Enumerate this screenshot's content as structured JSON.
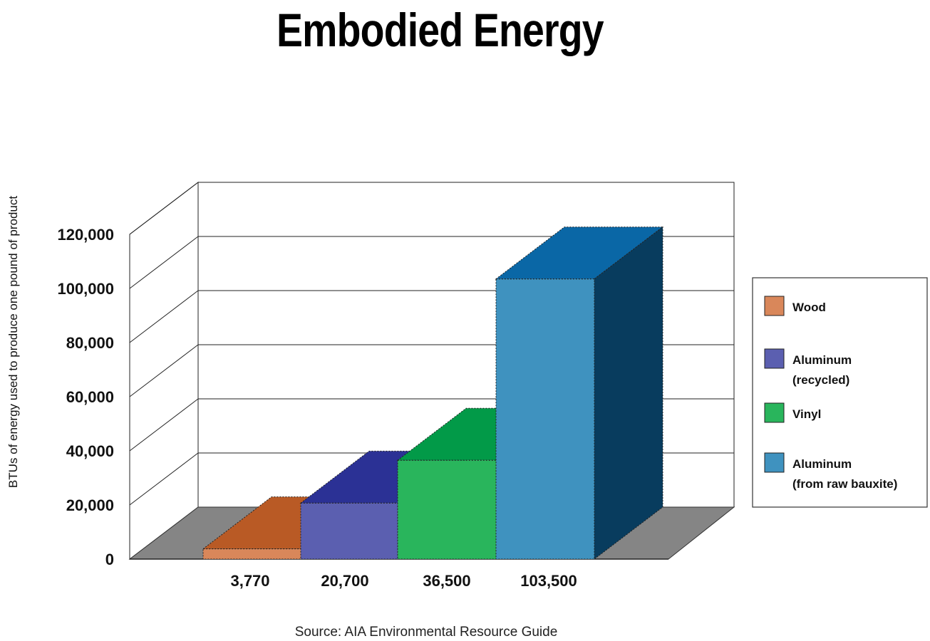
{
  "chart_data": {
    "type": "bar",
    "title": "Embodied Energy",
    "ylabel": "BTUs of energy used to produce one pound of product",
    "xlabel": "",
    "ylim": [
      0,
      120000
    ],
    "yticks": [
      0,
      20000,
      40000,
      60000,
      80000,
      100000,
      120000
    ],
    "ytick_labels": [
      "0",
      "20,000",
      "40,000",
      "60,000",
      "80,000",
      "100,000",
      "120,000"
    ],
    "categories": [
      "Wood",
      "Aluminum (recycled)",
      "Vinyl",
      "Aluminum (from raw bauxite)"
    ],
    "values": [
      3770,
      20700,
      36500,
      103500
    ],
    "value_labels": [
      "3,770",
      "20,700",
      "36,500",
      "103,500"
    ],
    "legend": {
      "position": "right",
      "entries": [
        {
          "lines": [
            "Wood"
          ],
          "color": "#d9875a"
        },
        {
          "lines": [
            "Aluminum",
            "(recycled)"
          ],
          "color": "#5b5fb0"
        },
        {
          "lines": [
            "Vinyl"
          ],
          "color": "#29b55c"
        },
        {
          "lines": [
            "Aluminum",
            "(from raw bauxite)"
          ],
          "color": "#3f92bf"
        }
      ]
    },
    "colors": {
      "front": [
        "#d9875a",
        "#5b5fb0",
        "#29b55c",
        "#3f92bf"
      ],
      "top": [
        "#b95a25",
        "#2b3195",
        "#029a48",
        "#0a67a6"
      ],
      "side": [
        "#8a3f15",
        "#1c2270",
        "#01703a",
        "#083c5e"
      ],
      "floor": "#858585"
    },
    "grid": true,
    "source": "Source: AIA Environmental Resource Guide"
  }
}
